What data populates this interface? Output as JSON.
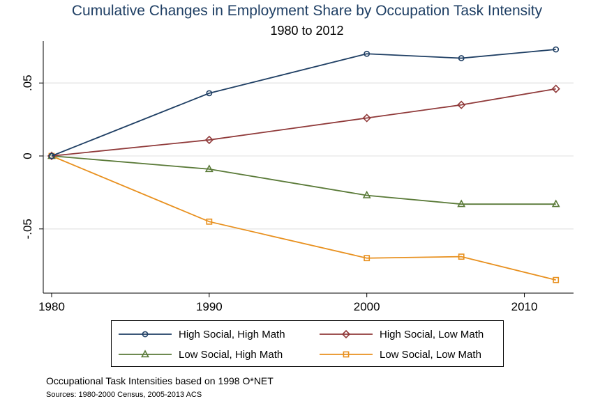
{
  "chart_data": {
    "type": "line",
    "title": "Cumulative Changes in Employment Share by Occupation Task Intensity",
    "subtitle": "1980 to 2012",
    "xlabel": "",
    "ylabel": "",
    "xlim": [
      1980,
      2012.5
    ],
    "ylim": [
      -0.095,
      0.078
    ],
    "x_ticks": [
      1980,
      1990,
      2000,
      2010
    ],
    "x_tick_labels": [
      "1980",
      "1990",
      "2000",
      "2010"
    ],
    "y_ticks": [
      -0.05,
      0,
      0.05
    ],
    "y_tick_labels": [
      "-.05",
      "0",
      ".05"
    ],
    "grid": "horizontal",
    "legend_position": "bottom",
    "series": [
      {
        "name": "High Social, High Math",
        "color": "#1f3f64",
        "marker": "circle",
        "x": [
          1980,
          1990,
          2000,
          2006,
          2012
        ],
        "y": [
          0,
          0.043,
          0.07,
          0.067,
          0.073
        ]
      },
      {
        "name": "High Social, Low Math",
        "color": "#903a3a",
        "marker": "diamond",
        "x": [
          1980,
          1990,
          2000,
          2006,
          2012
        ],
        "y": [
          0,
          0.011,
          0.026,
          0.035,
          0.046
        ]
      },
      {
        "name": "Low Social, High Math",
        "color": "#5a7a38",
        "marker": "triangle",
        "x": [
          1980,
          1990,
          2000,
          2006,
          2012
        ],
        "y": [
          0,
          -0.009,
          -0.027,
          -0.033,
          -0.033
        ]
      },
      {
        "name": "Low Social, Low Math",
        "color": "#e8901e",
        "marker": "square",
        "x": [
          1980,
          1990,
          2000,
          2006,
          2012
        ],
        "y": [
          0,
          -0.045,
          -0.07,
          -0.069,
          -0.085
        ]
      }
    ]
  },
  "notes": {
    "caption": "Occupational Task Intensities based on 1998 O*NET",
    "source": "Sources: 1980-2000 Census, 2005-2013 ACS"
  }
}
